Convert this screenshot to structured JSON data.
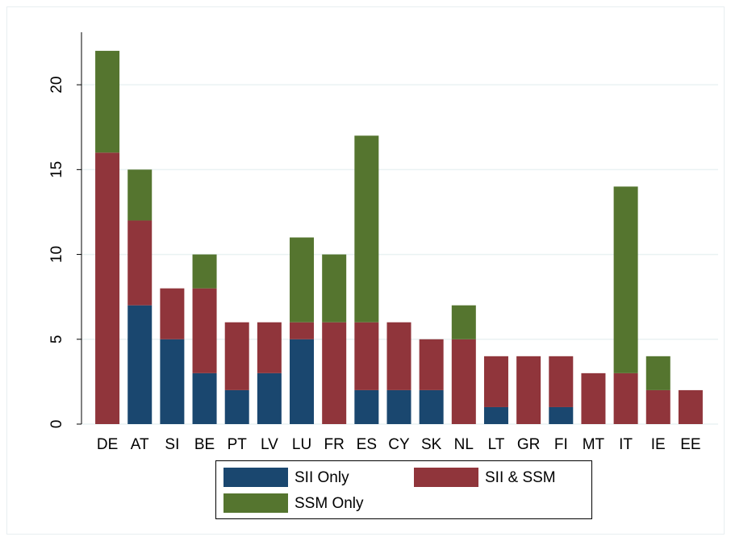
{
  "chart_data": {
    "type": "stacked_bar",
    "categories": [
      "DE",
      "AT",
      "SI",
      "BE",
      "PT",
      "LV",
      "LU",
      "FR",
      "ES",
      "CY",
      "SK",
      "NL",
      "LT",
      "GR",
      "FI",
      "MT",
      "IT",
      "IE",
      "EE"
    ],
    "series": [
      {
        "name": "SII Only",
        "color": "#1a476f",
        "values": [
          0,
          7,
          5,
          3,
          2,
          3,
          5,
          0,
          2,
          2,
          2,
          0,
          1,
          0,
          1,
          0,
          0,
          0,
          0
        ]
      },
      {
        "name": "SII & SSM",
        "color": "#90353b",
        "values": [
          16,
          5,
          3,
          5,
          4,
          3,
          1,
          6,
          4,
          4,
          3,
          5,
          3,
          4,
          3,
          3,
          3,
          2,
          2
        ]
      },
      {
        "name": "SSM Only",
        "color": "#55752f",
        "values": [
          6,
          3,
          0,
          2,
          0,
          0,
          5,
          4,
          11,
          0,
          0,
          2,
          0,
          0,
          0,
          0,
          11,
          2,
          0
        ]
      }
    ],
    "ylim": [
      0,
      23
    ],
    "yticks": [
      0,
      5,
      10,
      15,
      20
    ],
    "grid": true,
    "legend": "bottom"
  }
}
